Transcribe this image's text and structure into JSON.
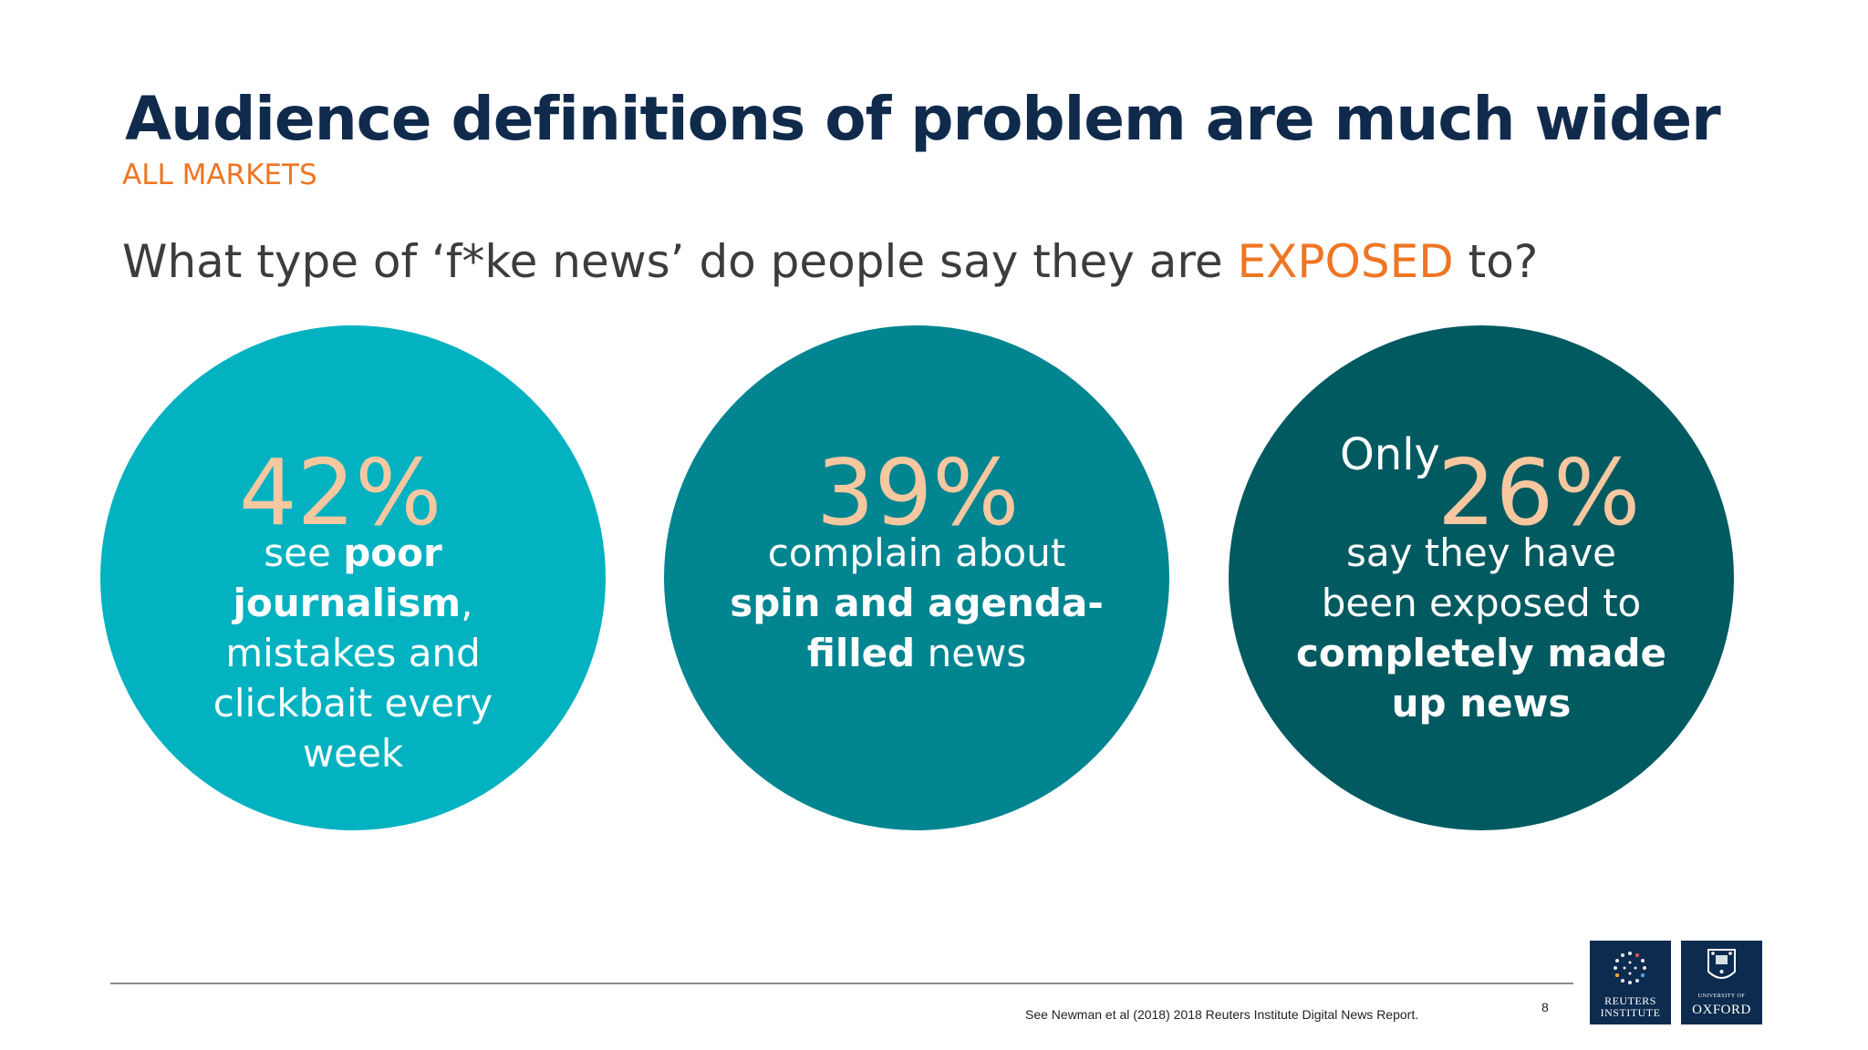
{
  "title": "Audience definitions of problem are much wider",
  "subtitle": "ALL MARKETS",
  "question": {
    "before": "What type of ‘f*ke news’ do people say they are ",
    "highlight": "EXPOSED",
    "after": " to?"
  },
  "circles": [
    {
      "percent": "42%",
      "text": [
        "see ",
        "poor journalism",
        ", mistakes and clickbait every week"
      ],
      "line1a": "see ",
      "line1b": "poor",
      "line2a": "journalism",
      "line2b": ",",
      "line3": "mistakes and",
      "line4": "clickbait every",
      "line5": "week",
      "color": "#02b2c1"
    },
    {
      "percent": "39%",
      "line1": "complain about",
      "line2": "spin and agenda-",
      "line3a": "filled",
      "line3b": " news",
      "color": "#018591"
    },
    {
      "prefix": "Only",
      "percent": "26%",
      "line1": "say they have",
      "line2": "been exposed to",
      "line3": "completely made",
      "line4": "up news",
      "color": "#025a61"
    }
  ],
  "percent_color": "#f7c7a0",
  "accent_color": "#ee7623",
  "title_color": "#102a4c",
  "footnote": "See Newman et al (2018) 2018 Reuters Institute Digital News Report.",
  "page_number": "8",
  "logos": {
    "reuters_line1": "REUTERS",
    "reuters_line2": "INSTITUTE",
    "oxford_line1": "UNIVERSITY OF",
    "oxford_line2": "OXFORD"
  }
}
